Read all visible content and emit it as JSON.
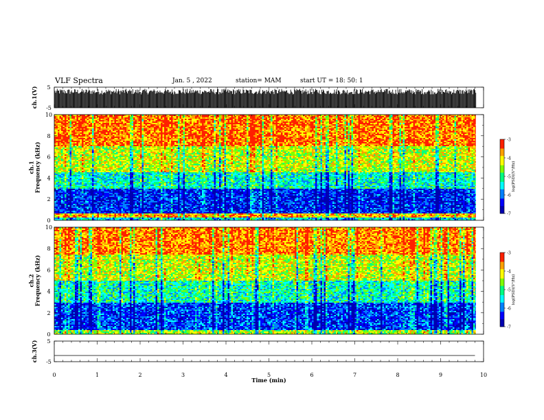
{
  "header": {
    "title": "VLF Spectra",
    "date": "Jan. 5 , 2022",
    "station": "station= MAM",
    "start": "start UT =  18: 50: 1"
  },
  "chart_data": [
    {
      "type": "line",
      "panel": "ch1-waveform",
      "ylabel": "ch.1(V)",
      "ylim": [
        -5,
        5
      ],
      "yticks": [
        "5",
        "-5"
      ],
      "xlim": [
        0,
        10
      ],
      "description": "dense impulsive waveform filling roughly -5 to 4 V"
    },
    {
      "type": "heatmap",
      "panel": "ch1-spectrogram",
      "ylabel": "ch.1\nFrequency (kHz)",
      "ylim": [
        0,
        10
      ],
      "yticks": [
        "0",
        "2",
        "4",
        "6",
        "8",
        "10"
      ],
      "xlim": [
        0,
        10
      ],
      "colorbar": {
        "label": "log(PSD)(V²/Hz)",
        "range": [
          -7,
          -3
        ],
        "ticks": [
          "-3",
          "-4",
          "-5",
          "-6",
          "-7"
        ]
      },
      "bands_log_psd": [
        {
          "freq_khz": [
            0,
            0.3
          ],
          "log_psd": -5.5
        },
        {
          "freq_khz": [
            0.3,
            0.7
          ],
          "log_psd": -3.8
        },
        {
          "freq_khz": [
            0.7,
            3.0
          ],
          "log_psd": -6.3
        },
        {
          "freq_khz": [
            3.0,
            4.5
          ],
          "log_psd": -5.3
        },
        {
          "freq_khz": [
            4.5,
            7.0
          ],
          "log_psd": -4.3
        },
        {
          "freq_khz": [
            7.0,
            10.0
          ],
          "log_psd": -3.5
        }
      ]
    },
    {
      "type": "heatmap",
      "panel": "ch2-spectrogram",
      "ylabel": "ch.2\nFrequency (kHz)",
      "ylim": [
        0,
        10
      ],
      "yticks": [
        "0",
        "2",
        "4",
        "6",
        "8",
        "10"
      ],
      "xlim": [
        0,
        10
      ],
      "colorbar": {
        "label": "log(PSD)(V²/Hz)",
        "range": [
          -7,
          -3
        ],
        "ticks": [
          "-3",
          "-4",
          "-5",
          "-6",
          "-7"
        ]
      },
      "bands_log_psd": [
        {
          "freq_khz": [
            0,
            0.4
          ],
          "log_psd": -4.5
        },
        {
          "freq_khz": [
            0.4,
            3.0
          ],
          "log_psd": -6.2
        },
        {
          "freq_khz": [
            3.0,
            5.0
          ],
          "log_psd": -5.2
        },
        {
          "freq_khz": [
            5.0,
            7.5
          ],
          "log_psd": -4.3
        },
        {
          "freq_khz": [
            7.5,
            10.0
          ],
          "log_psd": -3.6
        }
      ]
    },
    {
      "type": "line",
      "panel": "ch3-waveform",
      "ylabel": "ch.3(V)",
      "ylim": [
        -5,
        5
      ],
      "yticks": [
        "5",
        "-5"
      ],
      "xlim": [
        0,
        10
      ],
      "x": [
        0,
        9.8
      ],
      "y": [
        -2,
        -2
      ]
    }
  ],
  "xaxis": {
    "label": "Time (min)",
    "ticks": [
      "0",
      "1",
      "2",
      "3",
      "4",
      "5",
      "6",
      "7",
      "8",
      "9",
      "10"
    ]
  },
  "colors": {
    "axis": "#000000",
    "colormap": [
      "#0000b0",
      "#0000ff",
      "#0080ff",
      "#00ffff",
      "#00ff80",
      "#80ff00",
      "#ffff00",
      "#ffa000",
      "#ff2000"
    ]
  }
}
